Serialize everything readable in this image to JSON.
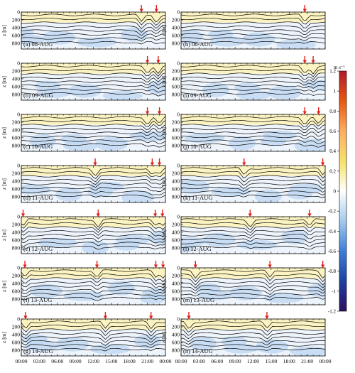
{
  "chart_data": {
    "type": "heatmap",
    "colorbar": {
      "unit_label": "m s⁻¹",
      "range": [
        -1.2,
        1.2
      ],
      "tick_labels": [
        "1.2",
        "1",
        "0.8",
        "0.6",
        "0.4",
        "0.2",
        "0",
        "-0.2",
        "-0.4",
        "-0.6",
        "-0.8",
        "-1",
        "-1.2"
      ]
    },
    "x_tick_labels": [
      "00:00",
      "03:00",
      "06:00",
      "09:00",
      "12:00",
      "15:00",
      "18:00",
      "21:00",
      "00:00"
    ],
    "y_axis_label": "z [m]",
    "y_tick_labels": [
      "0",
      "200",
      "400",
      "600",
      "800"
    ],
    "y_range_m": [
      0,
      950
    ],
    "panels": [
      {
        "label": "(a) 08-AUG",
        "arrows_hours": [
          20.0,
          22.5
        ]
      },
      {
        "label": "(b) 09-AUG",
        "arrows_hours": [
          21.0,
          22.8
        ]
      },
      {
        "label": "(c) 10-AUG",
        "arrows_hours": [
          21.0,
          23.0
        ]
      },
      {
        "label": "(d) 11-AUG",
        "arrows_hours": [
          12.3,
          21.8,
          23.0
        ]
      },
      {
        "label": "(e) 12-AUG",
        "arrows_hours": [
          0.3,
          12.8,
          22.3,
          23.5
        ]
      },
      {
        "label": "(f) 13-AUG",
        "arrows_hours": [
          0.6,
          12.6,
          22.4,
          23.6
        ]
      },
      {
        "label": "(g) 14-AUG",
        "arrows_hours": [
          0.7,
          14.0,
          21.6
        ]
      },
      {
        "label": "(h) 08-AUG",
        "arrows_hours": [
          20.6
        ]
      },
      {
        "label": "(i) 09-AUG",
        "arrows_hours": [
          20.6,
          22.0
        ]
      },
      {
        "label": "(j) 10-AUG",
        "arrows_hours": [
          20.6,
          22.9
        ]
      },
      {
        "label": "(k) 11-AUG",
        "arrows_hours": [
          10.5,
          23.6
        ]
      },
      {
        "label": "(l) 12-AUG",
        "arrows_hours": [
          11.5,
          21.4
        ]
      },
      {
        "label": "(m) 13-AUG",
        "arrows_hours": [
          2.4,
          14.8,
          23.6
        ]
      },
      {
        "label": "(n) 14-AUG",
        "arrows_hours": [
          1.3,
          14.3
        ]
      }
    ]
  }
}
